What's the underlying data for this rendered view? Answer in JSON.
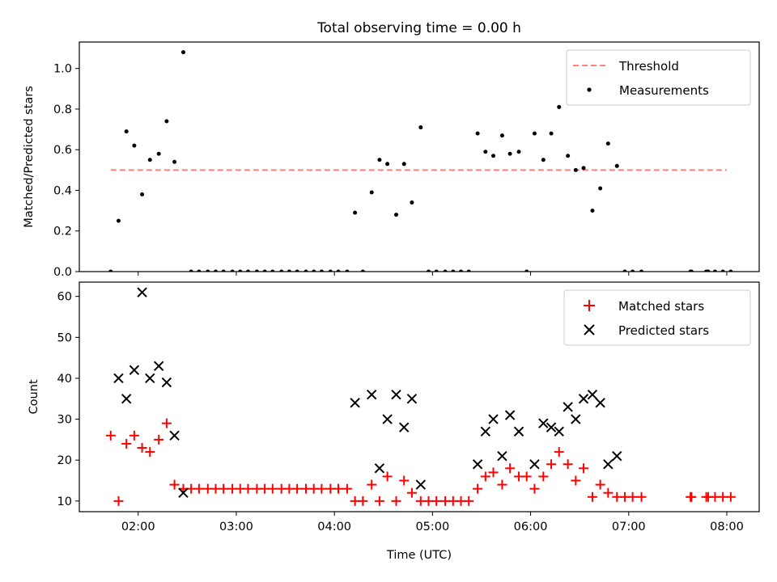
{
  "figure": {
    "title": "Total observing time = 0.00 h",
    "xlabel": "Time (UTC)",
    "x_ticks": [
      "02:00",
      "03:00",
      "04:00",
      "05:00",
      "06:00",
      "07:00",
      "08:00"
    ],
    "x_tick_hours": [
      2,
      3,
      4,
      5,
      6,
      7,
      8
    ],
    "xlim_hours": [
      1.4,
      8.33
    ]
  },
  "chart_data": [
    {
      "type": "scatter",
      "ylabel": "Matched/Predicted stars",
      "ylim": [
        0,
        1.13
      ],
      "y_ticks": [
        "0.0",
        "0.2",
        "0.4",
        "0.6",
        "0.8",
        "1.0"
      ],
      "y_tick_values": [
        0,
        0.2,
        0.4,
        0.6,
        0.8,
        1.0
      ],
      "legend_position": "upper-right",
      "threshold": {
        "name": "Threshold",
        "value": 0.5,
        "x_range_hours": [
          1.72,
          8.0
        ],
        "color": "#ff7f7f"
      },
      "series": [
        {
          "name": "Measurements",
          "marker": "dot",
          "color": "#000000",
          "x_hours": [
            1.72,
            1.8,
            1.88,
            1.96,
            2.04,
            2.12,
            2.21,
            2.29,
            2.37,
            2.46,
            2.54,
            2.62,
            2.71,
            2.79,
            2.87,
            2.96,
            3.04,
            3.12,
            3.21,
            3.29,
            3.37,
            3.46,
            3.54,
            3.62,
            3.71,
            3.79,
            3.87,
            3.96,
            4.04,
            4.13,
            4.21,
            4.29,
            4.38,
            4.46,
            4.54,
            4.63,
            4.71,
            4.79,
            4.88,
            4.96,
            5.04,
            5.13,
            5.21,
            5.29,
            5.37,
            5.46,
            5.54,
            5.62,
            5.71,
            5.79,
            5.88,
            5.96,
            6.04,
            6.13,
            6.21,
            6.29,
            6.38,
            6.46,
            6.54,
            6.63,
            6.71,
            6.79,
            6.88,
            6.96,
            7.04,
            7.13,
            7.63,
            7.64,
            7.79,
            7.81,
            7.88,
            7.96,
            8.04
          ],
          "y": [
            0.0,
            0.25,
            0.69,
            0.62,
            0.38,
            0.55,
            0.58,
            0.74,
            0.54,
            1.08,
            0.0,
            0.0,
            0.0,
            0.0,
            0.0,
            0.0,
            0.0,
            0.0,
            0.0,
            0.0,
            0.0,
            0.0,
            0.0,
            0.0,
            0.0,
            0.0,
            0.0,
            0.0,
            0.0,
            0.0,
            0.29,
            0.0,
            0.39,
            0.55,
            0.53,
            0.28,
            0.53,
            0.34,
            0.71,
            0.0,
            0.0,
            0.0,
            0.0,
            0.0,
            0.0,
            0.68,
            0.59,
            0.57,
            0.67,
            0.58,
            0.59,
            0.0,
            0.68,
            0.55,
            0.68,
            0.81,
            0.57,
            0.5,
            0.51,
            0.3,
            0.41,
            0.63,
            0.52,
            0.0,
            0.0,
            0.0,
            0.0,
            0.0,
            0.0,
            0.0,
            0.0,
            0.0,
            0.0
          ]
        }
      ]
    },
    {
      "type": "scatter",
      "ylabel": "Count",
      "ylim": [
        7.4,
        63.5
      ],
      "y_ticks": [
        "10",
        "20",
        "30",
        "40",
        "50",
        "60"
      ],
      "y_tick_values": [
        10,
        20,
        30,
        40,
        50,
        60
      ],
      "legend_position": "upper-right",
      "series": [
        {
          "name": "Matched stars",
          "marker": "plus",
          "color": "#ff0000",
          "x_hours": [
            1.72,
            1.8,
            1.88,
            1.96,
            2.04,
            2.12,
            2.21,
            2.29,
            2.37,
            2.46,
            2.54,
            2.62,
            2.71,
            2.79,
            2.87,
            2.96,
            3.04,
            3.12,
            3.21,
            3.29,
            3.37,
            3.46,
            3.54,
            3.62,
            3.71,
            3.79,
            3.87,
            3.96,
            4.04,
            4.13,
            4.21,
            4.29,
            4.38,
            4.46,
            4.54,
            4.63,
            4.71,
            4.79,
            4.88,
            4.96,
            5.04,
            5.13,
            5.21,
            5.29,
            5.37,
            5.46,
            5.54,
            5.62,
            5.71,
            5.79,
            5.88,
            5.96,
            6.04,
            6.13,
            6.21,
            6.29,
            6.38,
            6.46,
            6.54,
            6.63,
            6.71,
            6.79,
            6.88,
            6.96,
            7.04,
            7.13,
            7.63,
            7.64,
            7.79,
            7.81,
            7.88,
            7.96,
            8.04
          ],
          "y": [
            26,
            10,
            24,
            26,
            23,
            22,
            25,
            29,
            14,
            13,
            13,
            13,
            13,
            13,
            13,
            13,
            13,
            13,
            13,
            13,
            13,
            13,
            13,
            13,
            13,
            13,
            13,
            13,
            13,
            13,
            10,
            10,
            14,
            10,
            16,
            10,
            15,
            12,
            10,
            10,
            10,
            10,
            10,
            10,
            10,
            13,
            16,
            17,
            14,
            18,
            16,
            16,
            13,
            16,
            19,
            22,
            19,
            15,
            18,
            11,
            14,
            12,
            11,
            11,
            11,
            11,
            11,
            11,
            11,
            11,
            11,
            11,
            11
          ]
        },
        {
          "name": "Predicted stars",
          "marker": "x",
          "color": "#000000",
          "x_hours": [
            1.8,
            1.88,
            1.96,
            2.04,
            2.12,
            2.21,
            2.29,
            2.37,
            2.46,
            4.21,
            4.38,
            4.46,
            4.54,
            4.63,
            4.71,
            4.79,
            4.88,
            5.46,
            5.54,
            5.62,
            5.71,
            5.79,
            5.88,
            6.04,
            6.13,
            6.21,
            6.29,
            6.38,
            6.46,
            6.54,
            6.63,
            6.71,
            6.79,
            6.88
          ],
          "y": [
            40,
            35,
            42,
            61,
            40,
            43,
            39,
            26,
            12,
            34,
            36,
            18,
            30,
            36,
            28,
            35,
            14,
            19,
            27,
            30,
            21,
            31,
            27,
            19,
            29,
            28,
            27,
            33,
            30,
            35,
            36,
            34,
            19,
            21
          ]
        }
      ]
    }
  ]
}
